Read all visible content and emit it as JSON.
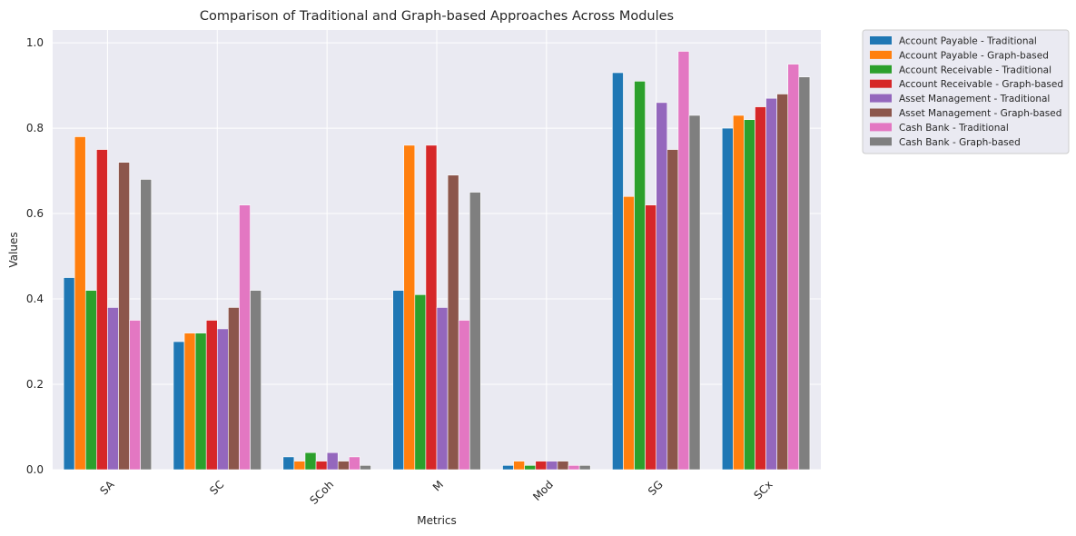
{
  "chart_data": {
    "type": "bar",
    "title": "Comparison of Traditional and Graph-based Approaches Across Modules",
    "xlabel": "Metrics",
    "ylabel": "Values",
    "categories": [
      "SA",
      "SC",
      "SCoh",
      "M",
      "Mod",
      "SG",
      "SCx"
    ],
    "ylim": [
      0,
      1.03
    ],
    "yticks": [
      "0.0",
      "0.2",
      "0.4",
      "0.6",
      "0.8",
      "1.0"
    ],
    "ytick_values": [
      0.0,
      0.2,
      0.4,
      0.6,
      0.8,
      1.0
    ],
    "grid": true,
    "legend_position": "outside-top-right",
    "series": [
      {
        "name": "Account Payable - Traditional",
        "color": "#1f77b4",
        "values": [
          0.45,
          0.3,
          0.03,
          0.42,
          0.01,
          0.93,
          0.8
        ]
      },
      {
        "name": "Account Payable - Graph-based",
        "color": "#ff7f0e",
        "values": [
          0.78,
          0.32,
          0.02,
          0.76,
          0.02,
          0.64,
          0.83
        ]
      },
      {
        "name": "Account Receivable - Traditional",
        "color": "#2ca02c",
        "values": [
          0.42,
          0.32,
          0.04,
          0.41,
          0.01,
          0.91,
          0.82
        ]
      },
      {
        "name": "Account Receivable - Graph-based",
        "color": "#d62728",
        "values": [
          0.75,
          0.35,
          0.02,
          0.76,
          0.02,
          0.62,
          0.85
        ]
      },
      {
        "name": "Asset Management - Traditional",
        "color": "#9467bd",
        "values": [
          0.38,
          0.33,
          0.04,
          0.38,
          0.02,
          0.86,
          0.87
        ]
      },
      {
        "name": "Asset Management - Graph-based",
        "color": "#8c564b",
        "values": [
          0.72,
          0.38,
          0.02,
          0.69,
          0.02,
          0.75,
          0.88
        ]
      },
      {
        "name": "Cash Bank - Traditional",
        "color": "#e377c2",
        "values": [
          0.35,
          0.62,
          0.03,
          0.35,
          0.01,
          0.98,
          0.95
        ]
      },
      {
        "name": "Cash Bank - Graph-based",
        "color": "#7f7f7f",
        "values": [
          0.68,
          0.42,
          0.01,
          0.65,
          0.01,
          0.83,
          0.92
        ]
      }
    ]
  }
}
